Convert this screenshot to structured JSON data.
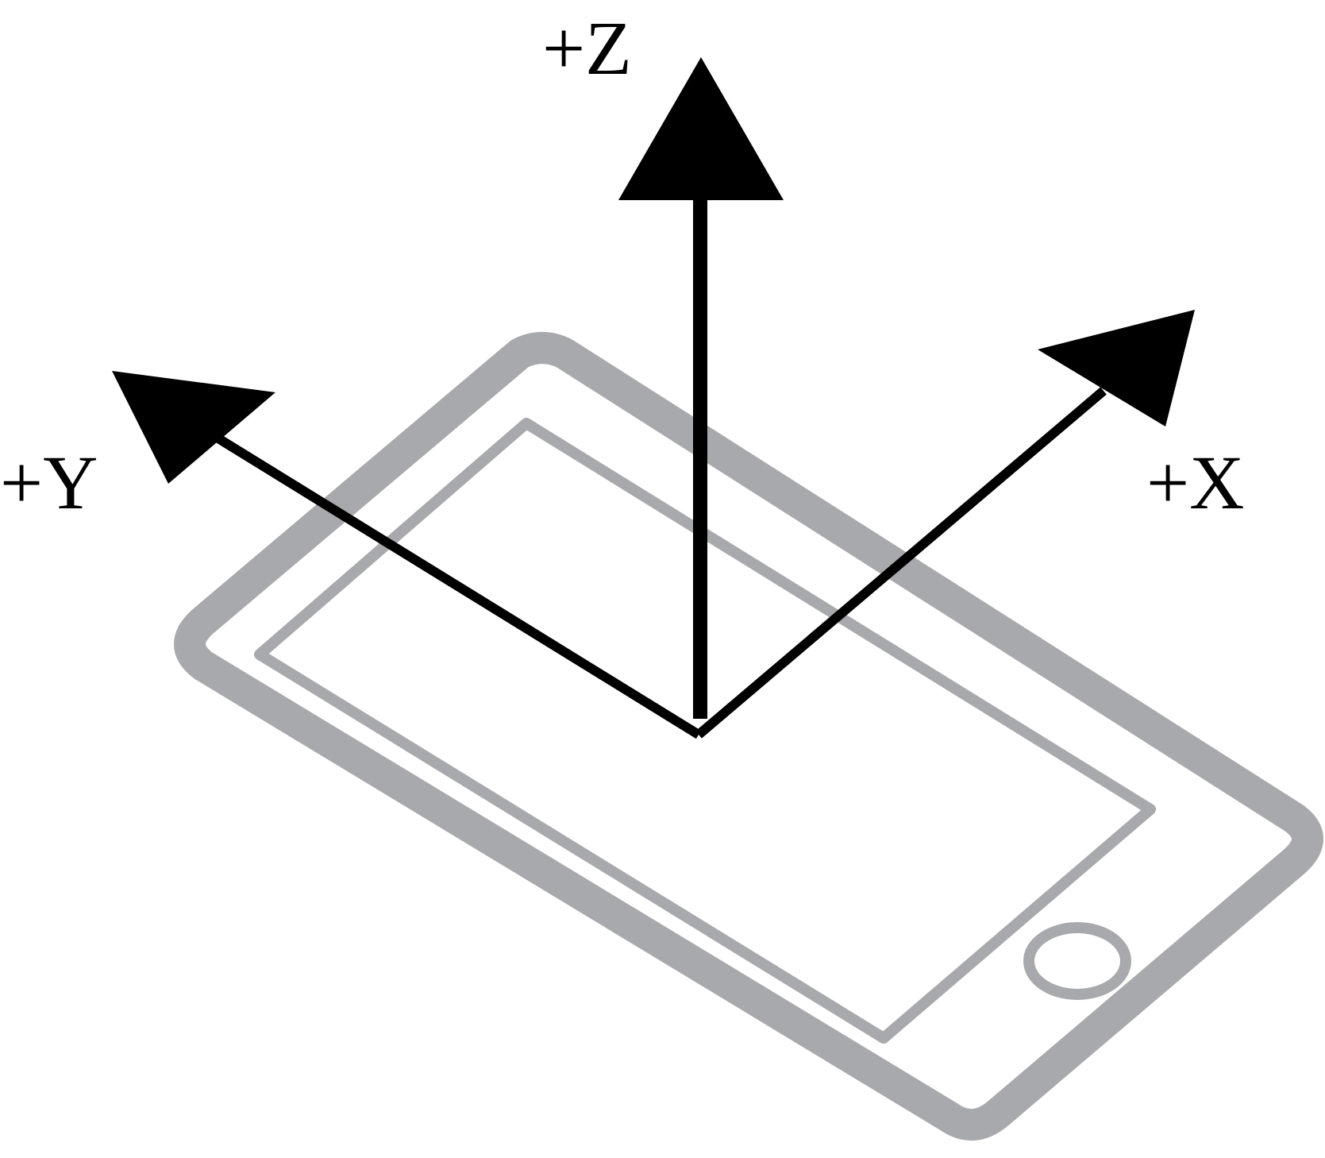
{
  "axes": {
    "z": {
      "label": "+Z"
    },
    "y": {
      "label": "+Y"
    },
    "x": {
      "label": "+X"
    }
  },
  "colors": {
    "device_outline": "#a8a9ac",
    "axes": "#000000",
    "background": "#ffffff"
  },
  "icons": {
    "device": "smartphone-outline-icon",
    "home_button": "home-button-icon"
  }
}
